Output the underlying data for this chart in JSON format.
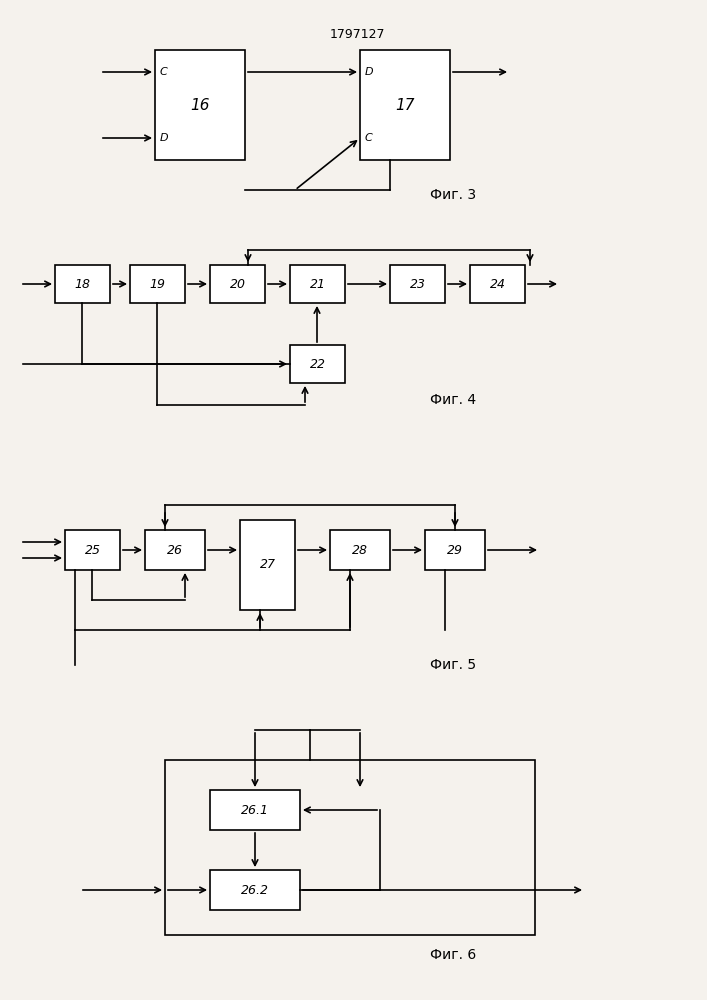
{
  "bg_color": "#f5f2ed",
  "patent_number": "1797127",
  "fig3_label": "Фиг. 3",
  "fig4_label": "Фиг. 4",
  "fig5_label": "Фиг. 5",
  "fig6_label": "Фиг. 6"
}
